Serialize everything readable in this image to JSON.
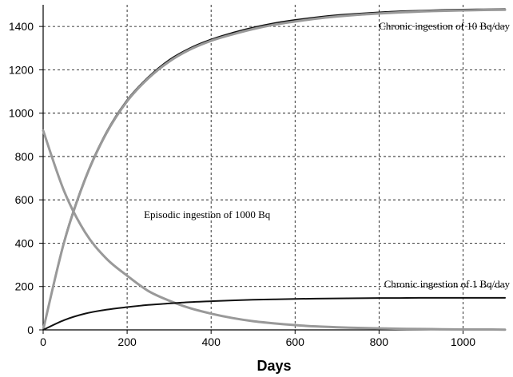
{
  "chart_data": {
    "type": "line",
    "title": "",
    "xlabel": "Days",
    "ylabel": "",
    "xlim": [
      0,
      1100
    ],
    "ylim": [
      0,
      1500
    ],
    "grid": true,
    "x_ticks": [
      0,
      200,
      400,
      600,
      800,
      1000
    ],
    "x_tick_labels": [
      "0",
      "200",
      "400",
      "600",
      "800",
      "1000"
    ],
    "y_ticks": [
      0,
      200,
      400,
      600,
      800,
      1000,
      1200,
      1400
    ],
    "y_tick_labels": [
      "0",
      "200",
      "400",
      "600",
      "800",
      "1000",
      "1200",
      "1400"
    ],
    "x": [
      0,
      50,
      100,
      150,
      200,
      250,
      300,
      350,
      400,
      450,
      500,
      550,
      600,
      650,
      700,
      750,
      800,
      850,
      900,
      950,
      1000,
      1050,
      1100
    ],
    "series": [
      {
        "name": "",
        "color": "#111111",
        "values": [
          0,
          410,
          700,
          910,
          1060,
          1165,
          1245,
          1300,
          1340,
          1370,
          1395,
          1415,
          1430,
          1442,
          1452,
          1459,
          1465,
          1470,
          1473,
          1476,
          1478,
          1479,
          1480
        ]
      },
      {
        "name": "",
        "color": "#999999",
        "values": [
          0,
          405,
          695,
          905,
          1055,
          1160,
          1238,
          1294,
          1334,
          1363,
          1388,
          1408,
          1423,
          1436,
          1446,
          1454,
          1460,
          1465,
          1469,
          1472,
          1474,
          1476,
          1477
        ]
      },
      {
        "name": "",
        "color": "#999999",
        "values": [
          920,
          640,
          450,
          330,
          250,
          180,
          135,
          100,
          75,
          55,
          40,
          30,
          22,
          16,
          12,
          9,
          7,
          5,
          4,
          3,
          2,
          2,
          1
        ]
      },
      {
        "name": "",
        "color": "#111111",
        "values": [
          0,
          45,
          75,
          93,
          105,
          115,
          122,
          128,
          132,
          136,
          139,
          141,
          143,
          144,
          145,
          146,
          147,
          147,
          148,
          148,
          148,
          148,
          148
        ]
      }
    ],
    "annotations": [
      {
        "text": "Chronic ingestion of 10 Bq/day",
        "x": 1100,
        "y": 1400,
        "anchor": "end"
      },
      {
        "text": "Episodic ingestion of 1000 Bq",
        "x": 240,
        "y": 530,
        "anchor": "start"
      },
      {
        "text": "Chronic ingestion of 1 Bq/day",
        "x": 1100,
        "y": 210,
        "anchor": "end"
      }
    ]
  }
}
